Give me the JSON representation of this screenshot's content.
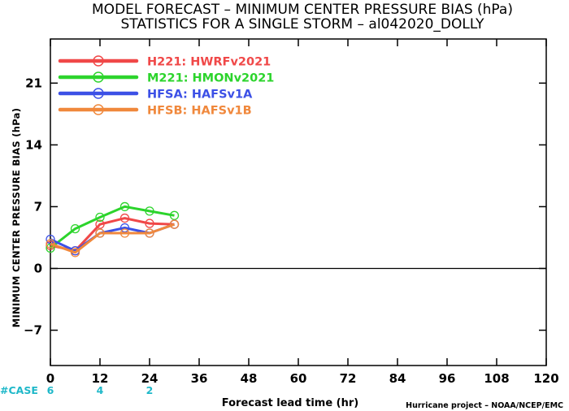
{
  "title_line1": "MODEL FORECAST – MINIMUM CENTER PRESSURE BIAS (hPa)",
  "title_line2": "STATISTICS FOR A SINGLE STORM – al042020_DOLLY",
  "credit": "Hurricane project – NOAA/NCEP/EMC",
  "case_label": "#CASE",
  "case_counts": [
    {
      "x": 0,
      "n": "6"
    },
    {
      "x": 12,
      "n": "4"
    },
    {
      "x": 24,
      "n": "2"
    }
  ],
  "colors": {
    "case": "#1fb8c9",
    "zero_line": "#000000",
    "axes": "#000000"
  },
  "chart_data": {
    "type": "line",
    "title": "MODEL FORECAST – MINIMUM CENTER PRESSURE BIAS (hPa)",
    "subtitle": "STATISTICS FOR A SINGLE STORM – al042020_DOLLY",
    "xlabel": "Forecast lead time (hr)",
    "ylabel": "MINIMUM CENTER PRESSURE BIAS (hPa)",
    "xlim": [
      0,
      120
    ],
    "ylim": [
      -11,
      26
    ],
    "xticks": [
      0,
      12,
      24,
      36,
      48,
      60,
      72,
      84,
      96,
      108,
      120
    ],
    "yticks": [
      -7,
      0,
      7,
      14,
      21
    ],
    "grid": false,
    "legend": "top-left",
    "series": [
      {
        "name": "H221: HWRFv2021",
        "color": "#f04848",
        "x": [
          0,
          6,
          12,
          18,
          24,
          30
        ],
        "y": [
          2.6,
          2.0,
          5.0,
          5.7,
          5.1,
          5.0
        ]
      },
      {
        "name": "M221: HMONv2021",
        "color": "#2cd42c",
        "x": [
          0,
          6,
          12,
          18,
          24,
          30
        ],
        "y": [
          2.3,
          4.5,
          5.8,
          7.0,
          6.5,
          6.0
        ]
      },
      {
        "name": "HFSA: HAFSv1A",
        "color": "#3c50e6",
        "x": [
          0,
          6,
          12,
          18,
          24,
          30
        ],
        "y": [
          3.3,
          2.0,
          4.0,
          4.6,
          4.0,
          5.0
        ]
      },
      {
        "name": "HFSB: HAFSv1B",
        "color": "#f0883c",
        "x": [
          0,
          6,
          12,
          18,
          24,
          30
        ],
        "y": [
          2.8,
          1.8,
          4.0,
          4.0,
          4.0,
          5.0
        ]
      }
    ]
  }
}
